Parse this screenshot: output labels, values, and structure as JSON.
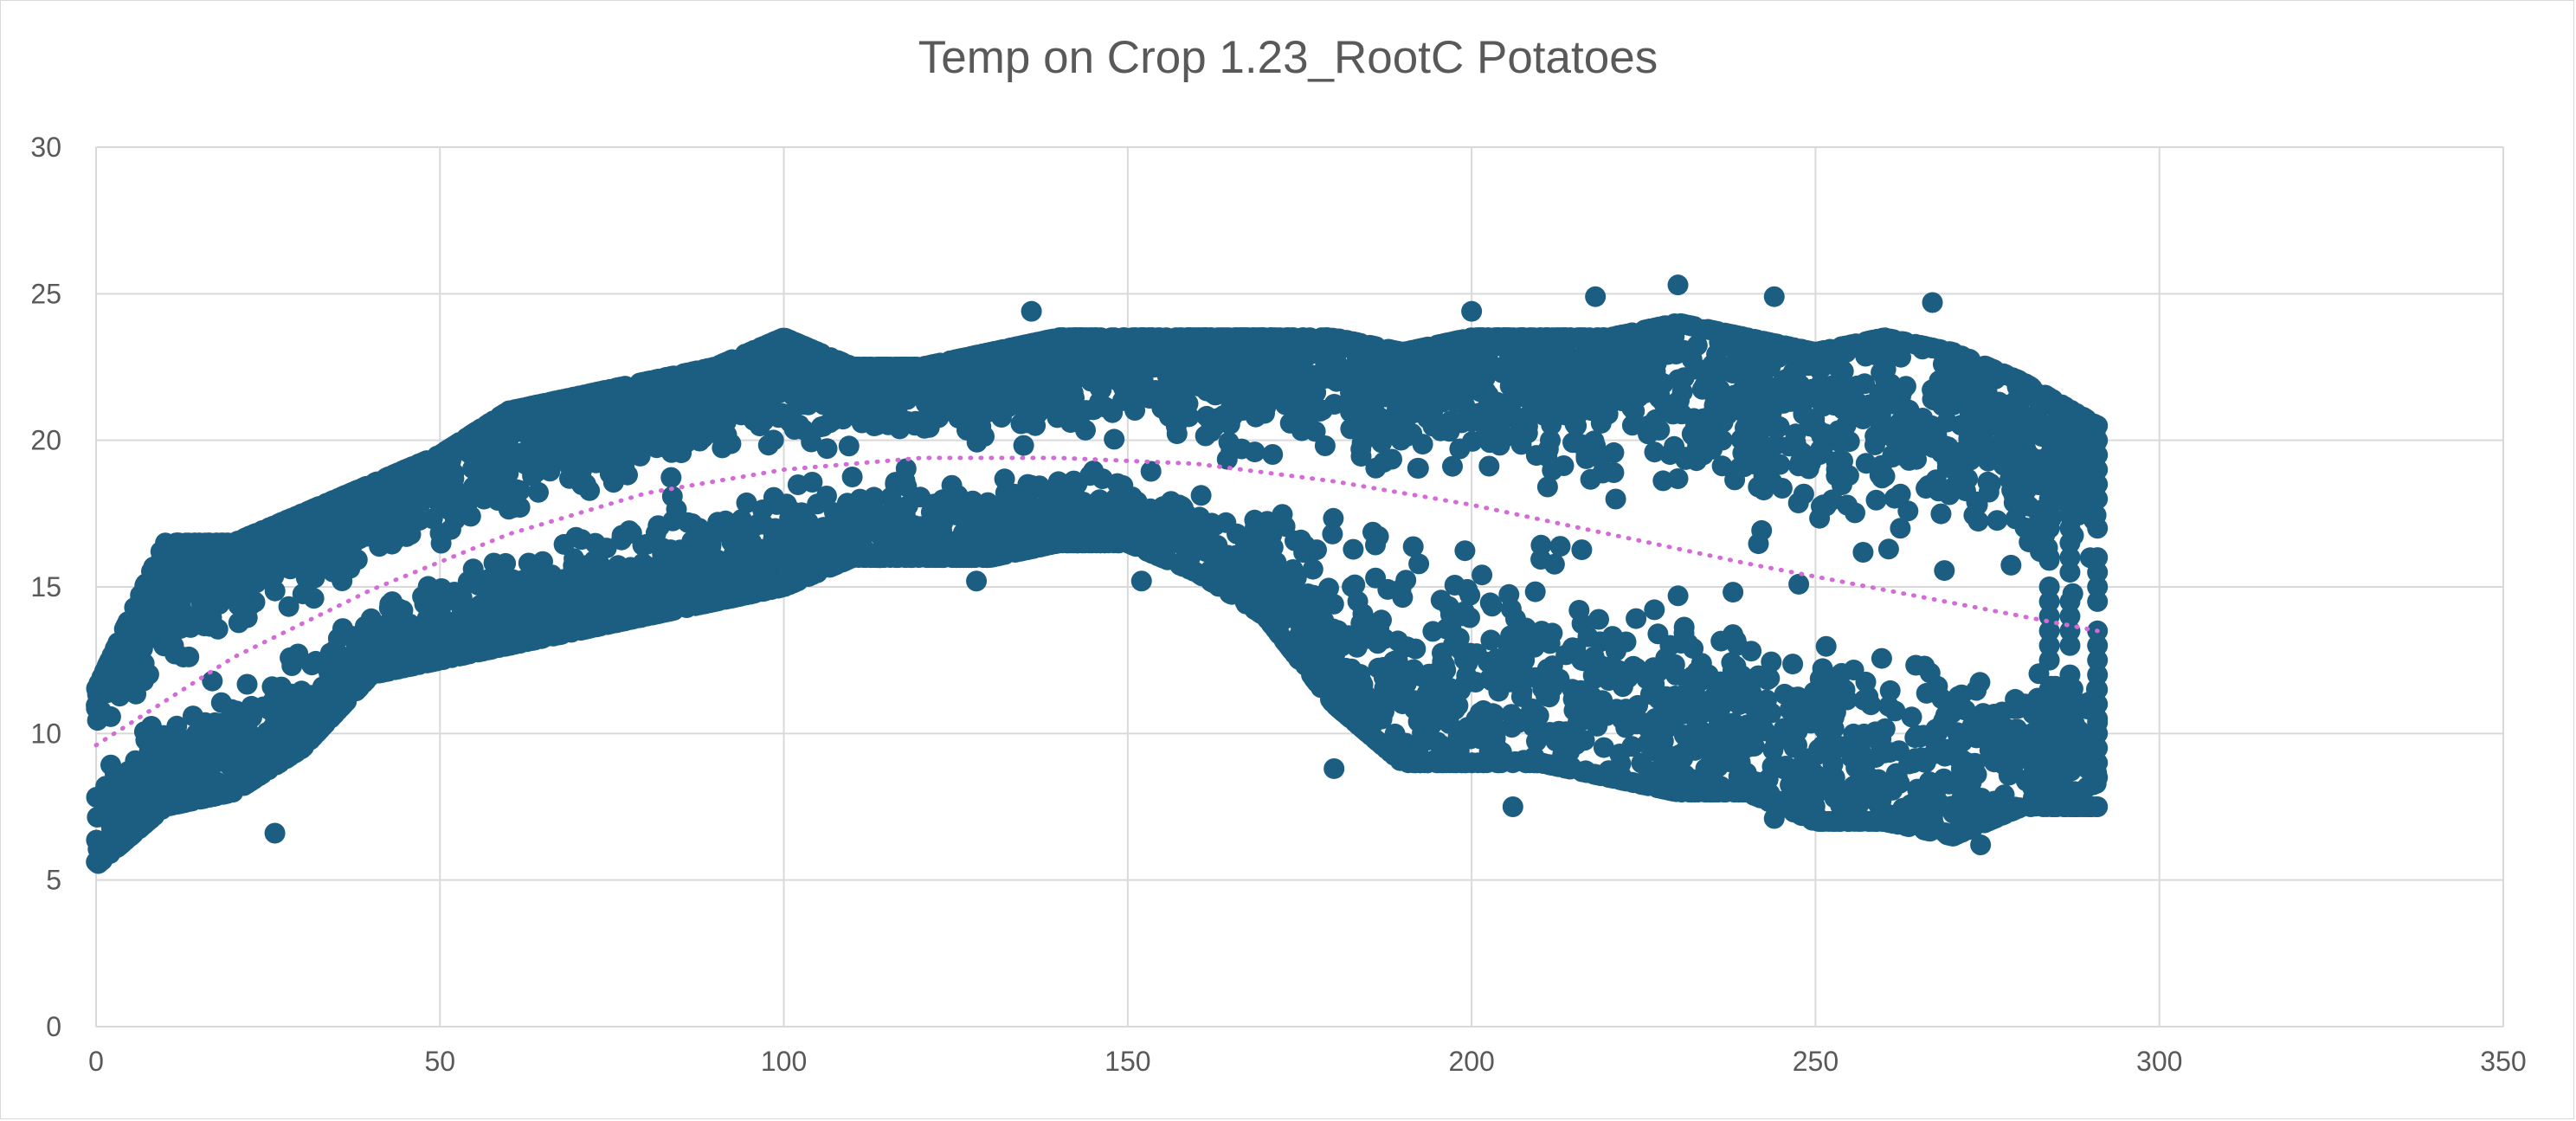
{
  "chart_data": {
    "type": "scatter",
    "title": "Temp on Crop 1.23_RootC Potatoes",
    "xlabel": "",
    "ylabel": "",
    "xlim": [
      0,
      350
    ],
    "ylim": [
      0,
      30
    ],
    "x_ticks": [
      "0",
      "50",
      "100",
      "150",
      "200",
      "250",
      "300",
      "350"
    ],
    "y_ticks": [
      "0",
      "5",
      "10",
      "15",
      "20",
      "25",
      "30"
    ],
    "grid": true,
    "legend": "none",
    "marker_color": "#1b5e82",
    "trendline_color": "#d46bd6",
    "x_range_of_points": [
      0,
      291
    ],
    "series": [
      {
        "kind": "scatter-envelope",
        "note_points": "dense cloud; envelope sampled at x positions (upper, lower bound of main band)",
        "envelope": [
          {
            "x": 0,
            "upper": 11.5,
            "lower": 5.5
          },
          {
            "x": 10,
            "upper": 16.5,
            "lower": 7.5
          },
          {
            "x": 20,
            "upper": 16.5,
            "lower": 8.0
          },
          {
            "x": 30,
            "upper": 17.5,
            "lower": 9.5
          },
          {
            "x": 40,
            "upper": 18.5,
            "lower": 12.0
          },
          {
            "x": 50,
            "upper": 19.5,
            "lower": 12.5
          },
          {
            "x": 60,
            "upper": 21.0,
            "lower": 13.0
          },
          {
            "x": 70,
            "upper": 21.5,
            "lower": 13.5
          },
          {
            "x": 80,
            "upper": 22.0,
            "lower": 14.0
          },
          {
            "x": 90,
            "upper": 22.5,
            "lower": 14.5
          },
          {
            "x": 100,
            "upper": 23.5,
            "lower": 15.0
          },
          {
            "x": 110,
            "upper": 22.5,
            "lower": 16.0
          },
          {
            "x": 120,
            "upper": 22.5,
            "lower": 16.0
          },
          {
            "x": 130,
            "upper": 23.0,
            "lower": 16.0
          },
          {
            "x": 140,
            "upper": 23.5,
            "lower": 16.5
          },
          {
            "x": 150,
            "upper": 23.5,
            "lower": 16.5
          },
          {
            "x": 160,
            "upper": 23.5,
            "lower": 15.5
          },
          {
            "x": 170,
            "upper": 23.5,
            "lower": 14.0
          },
          {
            "x": 180,
            "upper": 23.5,
            "lower": 11.0
          },
          {
            "x": 190,
            "upper": 23.0,
            "lower": 9.0
          },
          {
            "x": 200,
            "upper": 23.5,
            "lower": 9.0
          },
          {
            "x": 210,
            "upper": 23.5,
            "lower": 9.0
          },
          {
            "x": 220,
            "upper": 23.5,
            "lower": 8.5
          },
          {
            "x": 230,
            "upper": 24.0,
            "lower": 8.0
          },
          {
            "x": 240,
            "upper": 23.5,
            "lower": 8.0
          },
          {
            "x": 250,
            "upper": 23.0,
            "lower": 7.0
          },
          {
            "x": 260,
            "upper": 23.5,
            "lower": 7.0
          },
          {
            "x": 270,
            "upper": 23.0,
            "lower": 6.5
          },
          {
            "x": 280,
            "upper": 22.0,
            "lower": 7.5
          },
          {
            "x": 291,
            "upper": 20.5,
            "lower": 7.5
          }
        ],
        "outliers": [
          {
            "x": 230,
            "y": 25.3
          },
          {
            "x": 218,
            "y": 24.9
          },
          {
            "x": 244,
            "y": 24.9
          },
          {
            "x": 267,
            "y": 24.7
          },
          {
            "x": 136,
            "y": 24.4
          },
          {
            "x": 200,
            "y": 24.4
          },
          {
            "x": 180,
            "y": 8.8
          },
          {
            "x": 206,
            "y": 7.5
          },
          {
            "x": 274,
            "y": 6.2
          },
          {
            "x": 26,
            "y": 6.6
          },
          {
            "x": 128,
            "y": 15.2
          },
          {
            "x": 152,
            "y": 15.2
          },
          {
            "x": 244,
            "y": 7.1
          }
        ]
      }
    ],
    "trendline": {
      "type": "polynomial",
      "style": "dotted",
      "points": [
        {
          "x": 0,
          "y": 9.6
        },
        {
          "x": 20,
          "y": 12.6
        },
        {
          "x": 40,
          "y": 14.9
        },
        {
          "x": 60,
          "y": 16.8
        },
        {
          "x": 80,
          "y": 18.2
        },
        {
          "x": 100,
          "y": 19.0
        },
        {
          "x": 120,
          "y": 19.4
        },
        {
          "x": 140,
          "y": 19.4
        },
        {
          "x": 160,
          "y": 19.2
        },
        {
          "x": 180,
          "y": 18.6
        },
        {
          "x": 200,
          "y": 17.8
        },
        {
          "x": 220,
          "y": 16.8
        },
        {
          "x": 240,
          "y": 15.8
        },
        {
          "x": 260,
          "y": 14.9
        },
        {
          "x": 280,
          "y": 14.0
        },
        {
          "x": 291,
          "y": 13.5
        }
      ]
    }
  }
}
